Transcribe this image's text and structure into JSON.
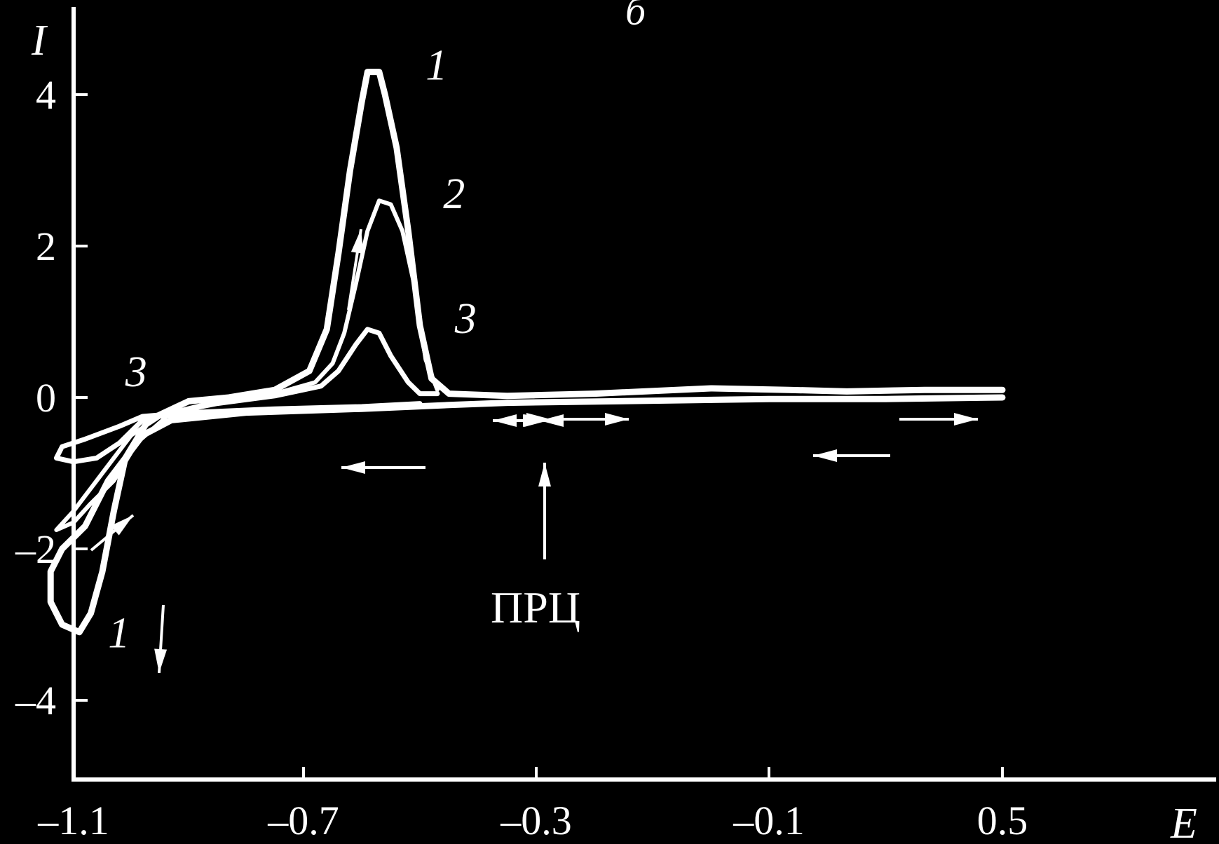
{
  "chart_data": {
    "type": "line",
    "panel_label": "б",
    "xlabel": "E",
    "ylabel": "I",
    "xlim": [
      -1.1,
      0.5
    ],
    "ylim": [
      -4,
      4.5
    ],
    "x_ticks": [
      {
        "value": -1.1,
        "label": "–1.1"
      },
      {
        "value": -0.7,
        "label": "–0.7"
      },
      {
        "value": -0.3,
        "label": "–0.3"
      },
      {
        "value": -0.1,
        "label": "–0.1"
      },
      {
        "value": 0.5,
        "label": "0.5"
      }
    ],
    "y_ticks": [
      {
        "value": 4,
        "label": "4"
      },
      {
        "value": 2,
        "label": "2"
      },
      {
        "value": 0,
        "label": "0"
      },
      {
        "value": -2,
        "label": "–2"
      },
      {
        "value": -4,
        "label": "–4"
      }
    ],
    "series": [
      {
        "name": "1",
        "label_points": [
          {
            "x": -0.49,
            "y": 4.2
          },
          {
            "x": -1.04,
            "y": -3.3
          }
        ],
        "points": [
          [
            0.5,
            0.1
          ],
          [
            0.3,
            0.1
          ],
          [
            0.1,
            0.08
          ],
          [
            -0.05,
            0.1
          ],
          [
            -0.15,
            0.12
          ],
          [
            -0.25,
            0.05
          ],
          [
            -0.35,
            0.02
          ],
          [
            -0.45,
            0.05
          ],
          [
            -0.48,
            0.25
          ],
          [
            -0.5,
            0.95
          ],
          [
            -0.52,
            2.2
          ],
          [
            -0.54,
            3.3
          ],
          [
            -0.56,
            4.0
          ],
          [
            -0.57,
            4.3
          ],
          [
            -0.59,
            4.3
          ],
          [
            -0.6,
            3.9
          ],
          [
            -0.62,
            3.0
          ],
          [
            -0.64,
            1.9
          ],
          [
            -0.66,
            0.9
          ],
          [
            -0.69,
            0.35
          ],
          [
            -0.75,
            0.1
          ],
          [
            -0.83,
            0.0
          ],
          [
            -0.9,
            -0.05
          ],
          [
            -0.97,
            -0.3
          ],
          [
            -1.01,
            -0.8
          ],
          [
            -1.03,
            -1.5
          ],
          [
            -1.05,
            -2.3
          ],
          [
            -1.07,
            -2.85
          ],
          [
            -1.09,
            -3.1
          ],
          [
            -1.12,
            -3.0
          ],
          [
            -1.14,
            -2.7
          ],
          [
            -1.14,
            -2.3
          ],
          [
            -1.12,
            -2.0
          ],
          [
            -1.08,
            -1.7
          ],
          [
            -1.04,
            -1.1
          ],
          [
            -0.98,
            -0.5
          ],
          [
            -0.93,
            -0.3
          ],
          [
            -0.8,
            -0.2
          ],
          [
            -0.6,
            -0.15
          ],
          [
            -0.45,
            -0.1
          ],
          [
            -0.35,
            -0.07
          ],
          [
            -0.1,
            -0.02
          ],
          [
            0.2,
            -0.02
          ],
          [
            0.5,
            0.0
          ]
        ]
      },
      {
        "name": "2",
        "label_points": [
          {
            "x": -0.46,
            "y": 2.5
          }
        ],
        "points": [
          [
            -0.47,
            0.1
          ],
          [
            -0.49,
            0.5
          ],
          [
            -0.51,
            1.5
          ],
          [
            -0.53,
            2.2
          ],
          [
            -0.55,
            2.55
          ],
          [
            -0.57,
            2.6
          ],
          [
            -0.59,
            2.2
          ],
          [
            -0.61,
            1.5
          ],
          [
            -0.63,
            0.85
          ],
          [
            -0.65,
            0.45
          ],
          [
            -0.68,
            0.2
          ],
          [
            -0.75,
            0.05
          ],
          [
            -0.85,
            -0.05
          ],
          [
            -0.93,
            -0.2
          ],
          [
            -0.99,
            -0.6
          ],
          [
            -1.03,
            -1.1
          ],
          [
            -1.07,
            -1.4
          ],
          [
            -1.1,
            -1.65
          ],
          [
            -1.13,
            -1.75
          ],
          [
            -1.1,
            -1.5
          ],
          [
            -1.05,
            -1.0
          ],
          [
            -1.0,
            -0.5
          ],
          [
            -0.95,
            -0.25
          ],
          [
            -0.8,
            -0.2
          ],
          [
            -0.6,
            -0.15
          ],
          [
            -0.45,
            -0.1
          ]
        ]
      },
      {
        "name": "3",
        "label_points": [
          {
            "x": -0.44,
            "y": 0.85
          },
          {
            "x": -1.01,
            "y": 0.15
          }
        ],
        "points": [
          [
            -0.47,
            0.05
          ],
          [
            -0.5,
            0.05
          ],
          [
            -0.52,
            0.2
          ],
          [
            -0.55,
            0.55
          ],
          [
            -0.57,
            0.85
          ],
          [
            -0.59,
            0.9
          ],
          [
            -0.61,
            0.7
          ],
          [
            -0.64,
            0.35
          ],
          [
            -0.67,
            0.15
          ],
          [
            -0.75,
            0.02
          ],
          [
            -0.85,
            -0.08
          ],
          [
            -0.93,
            -0.2
          ],
          [
            -0.98,
            -0.3
          ],
          [
            -1.02,
            -0.6
          ],
          [
            -1.06,
            -0.8
          ],
          [
            -1.1,
            -0.85
          ],
          [
            -1.13,
            -0.8
          ],
          [
            -1.12,
            -0.65
          ],
          [
            -1.08,
            -0.55
          ],
          [
            -1.02,
            -0.38
          ],
          [
            -0.98,
            -0.25
          ],
          [
            -0.9,
            -0.2
          ],
          [
            -0.75,
            -0.15
          ],
          [
            -0.6,
            -0.12
          ],
          [
            -0.5,
            -0.08
          ]
        ]
      }
    ],
    "annotations": [
      {
        "text": "ПРЦ",
        "x": -0.42,
        "y": -2.3
      },
      {
        "text": "",
        "arrow": "up",
        "x": -0.42,
        "y": -1.4
      }
    ]
  }
}
